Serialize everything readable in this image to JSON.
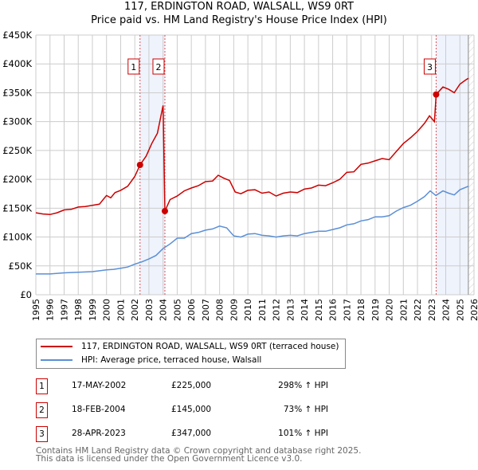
{
  "chart_data": {
    "type": "line",
    "title": "117, ERDINGTON ROAD, WALSALL, WS9 0RT",
    "subtitle": "Price paid vs. HM Land Registry's House Price Index (HPI)",
    "xlim": [
      1995,
      2026
    ],
    "ylim": [
      0,
      450000
    ],
    "grid": true,
    "x_ticks": [
      "1995",
      "1996",
      "1997",
      "1998",
      "1999",
      "2000",
      "2001",
      "2002",
      "2003",
      "2004",
      "2005",
      "2006",
      "2007",
      "2008",
      "2009",
      "2010",
      "2011",
      "2012",
      "2013",
      "2014",
      "2015",
      "2016",
      "2017",
      "2018",
      "2019",
      "2020",
      "2021",
      "2022",
      "2023",
      "2024",
      "2025",
      "2026"
    ],
    "y_ticks": [
      {
        "v": 0,
        "label": "£0"
      },
      {
        "v": 50000,
        "label": "£50K"
      },
      {
        "v": 100000,
        "label": "£100K"
      },
      {
        "v": 150000,
        "label": "£150K"
      },
      {
        "v": 200000,
        "label": "£200K"
      },
      {
        "v": 250000,
        "label": "£250K"
      },
      {
        "v": 300000,
        "label": "£300K"
      },
      {
        "v": 350000,
        "label": "£350K"
      },
      {
        "v": 400000,
        "label": "£400K"
      },
      {
        "v": 450000,
        "label": "£450K"
      }
    ],
    "series": [
      {
        "name": "117, ERDINGTON ROAD, WALSALL, WS9 0RT (terraced house)",
        "color": "#cc0000",
        "x": [
          1995,
          1995.5,
          1996,
          1996.5,
          1997,
          1997.5,
          1998,
          1998.5,
          1999,
          1999.5,
          2000,
          2000.3,
          2000.6,
          2001,
          2001.5,
          2002,
          2002.37,
          2002.8,
          2003.2,
          2003.6,
          2004.0,
          2004.13,
          2004.5,
          2005,
          2005.5,
          2006,
          2006.5,
          2007,
          2007.5,
          2007.9,
          2008.3,
          2008.7,
          2009.1,
          2009.5,
          2010,
          2010.5,
          2011,
          2011.5,
          2012,
          2012.5,
          2013,
          2013.5,
          2014,
          2014.5,
          2015,
          2015.5,
          2016,
          2016.5,
          2017,
          2017.5,
          2018,
          2018.5,
          2019,
          2019.5,
          2020,
          2020.5,
          2021,
          2021.5,
          2022,
          2022.5,
          2022.85,
          2023.2,
          2023.32,
          2023.8,
          2024.2,
          2024.6,
          2025.0,
          2025.4,
          2025.6
        ],
        "y": [
          142000,
          140000,
          139000,
          142000,
          147000,
          148000,
          152000,
          153000,
          155000,
          157000,
          172000,
          168000,
          177000,
          181000,
          188000,
          205000,
          225000,
          240000,
          262000,
          280000,
          328000,
          145000,
          165000,
          171000,
          180000,
          185000,
          189000,
          196000,
          197000,
          207000,
          202000,
          198000,
          178000,
          175000,
          181000,
          182000,
          176000,
          178000,
          171000,
          176000,
          178000,
          177000,
          183000,
          185000,
          190000,
          189000,
          194000,
          200000,
          212000,
          213000,
          226000,
          228000,
          232000,
          236000,
          234000,
          248000,
          262000,
          272000,
          283000,
          297000,
          310000,
          300000,
          347000,
          360000,
          356000,
          350000,
          365000,
          372000,
          375000
        ]
      },
      {
        "name": "HPI: Average price, terraced house, Walsall",
        "color": "#5b8fd6",
        "x": [
          1995,
          1996,
          1997,
          1998,
          1999,
          2000,
          2000.5,
          2001,
          2001.5,
          2002,
          2002.5,
          2003,
          2003.5,
          2004,
          2004.5,
          2005,
          2005.5,
          2006,
          2006.5,
          2007,
          2007.5,
          2008,
          2008.5,
          2009,
          2009.5,
          2010,
          2010.5,
          2011,
          2011.5,
          2012,
          2012.5,
          2013,
          2013.5,
          2014,
          2014.5,
          2015,
          2015.5,
          2016,
          2016.5,
          2017,
          2017.5,
          2018,
          2018.5,
          2019,
          2019.5,
          2020,
          2020.5,
          2021,
          2021.5,
          2022,
          2022.5,
          2022.9,
          2023.3,
          2023.8,
          2024.2,
          2024.6,
          2025.0,
          2025.6
        ],
        "y": [
          36000,
          36000,
          38000,
          39000,
          40000,
          43000,
          44000,
          46000,
          48000,
          53000,
          57000,
          62000,
          68000,
          80000,
          88000,
          98000,
          98000,
          106000,
          108000,
          112000,
          114000,
          119000,
          116000,
          102000,
          100000,
          105000,
          106000,
          103000,
          102000,
          100000,
          102000,
          103000,
          102000,
          106000,
          108000,
          110000,
          110000,
          113000,
          116000,
          121000,
          123000,
          128000,
          130000,
          135000,
          135000,
          137000,
          145000,
          151000,
          155000,
          162000,
          170000,
          180000,
          172000,
          180000,
          176000,
          173000,
          182000,
          188000
        ]
      }
    ],
    "sales": [
      {
        "label": "1",
        "x": 2002.37,
        "y": 225000
      },
      {
        "label": "2",
        "x": 2004.13,
        "y": 145000
      },
      {
        "label": "3",
        "x": 2023.32,
        "y": 347000
      }
    ],
    "shaded_ranges": [
      [
        2002.37,
        2004.13
      ],
      [
        2023.32,
        2025.6
      ]
    ],
    "forecast_start": 2025.6
  },
  "legend": {
    "property": "117, ERDINGTON ROAD, WALSALL, WS9 0RT (terraced house)",
    "hpi": "HPI: Average price, terraced house, Walsall"
  },
  "transactions": [
    {
      "num": "1",
      "date": "17-MAY-2002",
      "price": "£225,000",
      "hpi": "298% ↑ HPI"
    },
    {
      "num": "2",
      "date": "18-FEB-2004",
      "price": "£145,000",
      "hpi": "73% ↑ HPI"
    },
    {
      "num": "3",
      "date": "28-APR-2023",
      "price": "£347,000",
      "hpi": "101% ↑ HPI"
    }
  ],
  "footer": {
    "line1": "Contains HM Land Registry data © Crown copyright and database right 2025.",
    "line2": "This data is licensed under the Open Government Licence v3.0."
  }
}
